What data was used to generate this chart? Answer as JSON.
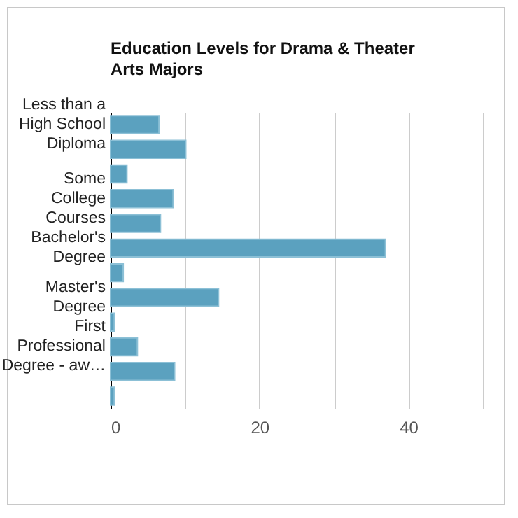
{
  "chart_data": {
    "type": "bar",
    "orientation": "horizontal",
    "title": "Education Levels for Drama & Theater Arts Majors",
    "categories": [
      "Less than a High School Diploma",
      null,
      null,
      "Some College Courses",
      null,
      "Bachelor's Degree",
      null,
      "Master's Degree",
      null,
      "First Professional Degree - aw…",
      null,
      null
    ],
    "values": [
      6.5,
      10.1,
      2.2,
      8.4,
      6.7,
      36.9,
      1.7,
      14.5,
      0.5,
      3.6,
      8.6,
      0.5
    ],
    "color": "#5ba1bf",
    "xlim": [
      0,
      50
    ],
    "xticks": [
      0,
      {
        "value": 10,
        "label": null
      },
      20,
      {
        "value": 30,
        "label": null
      },
      40,
      {
        "value": 50,
        "label": null
      }
    ],
    "grid": "x"
  }
}
